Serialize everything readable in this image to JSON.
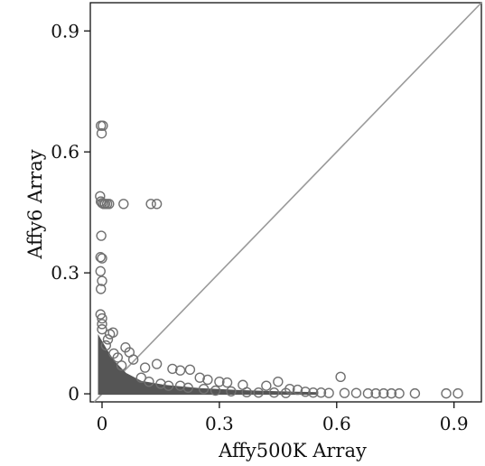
{
  "chart_data": {
    "type": "scatter",
    "xlabel": "Affy500K Array",
    "ylabel": "Affy6 Array",
    "xlim": [
      -0.03,
      0.97
    ],
    "ylim": [
      -0.02,
      0.97
    ],
    "xticks": [
      0,
      0.3,
      0.6,
      0.9
    ],
    "xtick_labels": [
      "0",
      "0.3",
      "0.6",
      "0.9"
    ],
    "yticks": [
      0,
      0.3,
      0.6,
      0.9
    ],
    "ytick_labels": [
      "0",
      "0.3",
      "0.6",
      "0.9"
    ],
    "reference_line": "y = x",
    "marker": "open-circle",
    "marker_color": "#707070",
    "dense_region_color": "#555555",
    "grid": false,
    "points": [
      {
        "x": -0.003,
        "y": 0.665
      },
      {
        "x": 0.002,
        "y": 0.665
      },
      {
        "x": -0.001,
        "y": 0.646
      },
      {
        "x": -0.005,
        "y": 0.49
      },
      {
        "x": -0.003,
        "y": 0.477
      },
      {
        "x": 0.0,
        "y": 0.473
      },
      {
        "x": 0.004,
        "y": 0.471
      },
      {
        "x": 0.008,
        "y": 0.471
      },
      {
        "x": 0.013,
        "y": 0.471
      },
      {
        "x": 0.018,
        "y": 0.471
      },
      {
        "x": 0.055,
        "y": 0.471
      },
      {
        "x": 0.125,
        "y": 0.471
      },
      {
        "x": 0.14,
        "y": 0.471
      },
      {
        "x": -0.002,
        "y": 0.392
      },
      {
        "x": -0.004,
        "y": 0.339
      },
      {
        "x": 0.0,
        "y": 0.336
      },
      {
        "x": -0.004,
        "y": 0.304
      },
      {
        "x": 0.0,
        "y": 0.28
      },
      {
        "x": -0.003,
        "y": 0.26
      },
      {
        "x": -0.004,
        "y": 0.197
      },
      {
        "x": 0.0,
        "y": 0.187
      },
      {
        "x": 0.0,
        "y": 0.173
      },
      {
        "x": 0.0,
        "y": 0.16
      },
      {
        "x": 0.02,
        "y": 0.148
      },
      {
        "x": 0.028,
        "y": 0.152
      },
      {
        "x": 0.06,
        "y": 0.115
      },
      {
        "x": 0.07,
        "y": 0.103
      },
      {
        "x": 0.08,
        "y": 0.085
      },
      {
        "x": 0.11,
        "y": 0.065
      },
      {
        "x": 0.14,
        "y": 0.074
      },
      {
        "x": 0.18,
        "y": 0.062
      },
      {
        "x": 0.2,
        "y": 0.058
      },
      {
        "x": 0.225,
        "y": 0.06
      },
      {
        "x": 0.25,
        "y": 0.04
      },
      {
        "x": 0.27,
        "y": 0.035
      },
      {
        "x": 0.3,
        "y": 0.03
      },
      {
        "x": 0.32,
        "y": 0.028
      },
      {
        "x": 0.36,
        "y": 0.022
      },
      {
        "x": 0.42,
        "y": 0.02
      },
      {
        "x": 0.45,
        "y": 0.03
      },
      {
        "x": 0.48,
        "y": 0.012
      },
      {
        "x": 0.5,
        "y": 0.01
      },
      {
        "x": 0.52,
        "y": 0.005
      },
      {
        "x": 0.54,
        "y": 0.003
      },
      {
        "x": 0.56,
        "y": 0.003
      },
      {
        "x": 0.58,
        "y": 0.002
      },
      {
        "x": 0.61,
        "y": 0.042
      },
      {
        "x": 0.62,
        "y": 0.002
      },
      {
        "x": 0.65,
        "y": 0.002
      },
      {
        "x": 0.68,
        "y": 0.001
      },
      {
        "x": 0.7,
        "y": 0.001
      },
      {
        "x": 0.72,
        "y": 0.001
      },
      {
        "x": 0.74,
        "y": 0.001
      },
      {
        "x": 0.76,
        "y": 0.001
      },
      {
        "x": 0.8,
        "y": 0.001
      },
      {
        "x": 0.88,
        "y": 0.001
      },
      {
        "x": 0.91,
        "y": 0.001
      },
      {
        "x": 0.2,
        "y": 0.02
      },
      {
        "x": 0.22,
        "y": 0.015
      },
      {
        "x": 0.26,
        "y": 0.012
      },
      {
        "x": 0.29,
        "y": 0.008
      },
      {
        "x": 0.33,
        "y": 0.006
      },
      {
        "x": 0.37,
        "y": 0.004
      },
      {
        "x": 0.4,
        "y": 0.003
      },
      {
        "x": 0.44,
        "y": 0.003
      },
      {
        "x": 0.47,
        "y": 0.002
      },
      {
        "x": 0.1,
        "y": 0.04
      },
      {
        "x": 0.12,
        "y": 0.03
      },
      {
        "x": 0.15,
        "y": 0.025
      },
      {
        "x": 0.17,
        "y": 0.02
      },
      {
        "x": 0.05,
        "y": 0.07
      },
      {
        "x": 0.04,
        "y": 0.09
      },
      {
        "x": 0.03,
        "y": 0.1
      },
      {
        "x": 0.01,
        "y": 0.12
      },
      {
        "x": 0.015,
        "y": 0.135
      }
    ],
    "dense_region": [
      {
        "x": -0.008,
        "y": 0.0
      },
      {
        "x": -0.008,
        "y": 0.14
      },
      {
        "x": 0.01,
        "y": 0.11
      },
      {
        "x": 0.03,
        "y": 0.08
      },
      {
        "x": 0.06,
        "y": 0.05
      },
      {
        "x": 0.1,
        "y": 0.03
      },
      {
        "x": 0.16,
        "y": 0.02
      },
      {
        "x": 0.25,
        "y": 0.012
      },
      {
        "x": 0.35,
        "y": 0.007
      },
      {
        "x": 0.45,
        "y": 0.004
      },
      {
        "x": 0.55,
        "y": 0.002
      },
      {
        "x": 0.55,
        "y": 0.0
      }
    ]
  }
}
